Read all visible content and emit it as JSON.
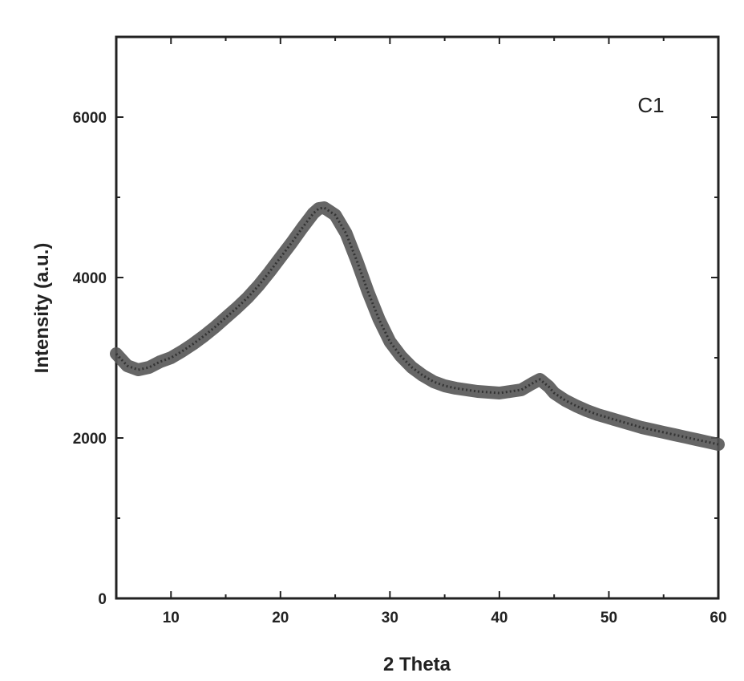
{
  "chart_data": {
    "type": "line",
    "title": "",
    "xlabel": "2 Theta",
    "ylabel": "Intensity (a.u.)",
    "xlim": [
      5,
      60
    ],
    "ylim": [
      0,
      7000
    ],
    "xticks": [
      10,
      20,
      30,
      40,
      50,
      60
    ],
    "yticks": [
      0,
      2000,
      4000,
      6000
    ],
    "grid": false,
    "annotation": "C1",
    "line_color": "#555555",
    "series": [
      {
        "x": [
          5,
          6,
          7,
          8,
          9,
          10,
          11,
          12,
          13,
          14,
          15,
          16,
          17,
          18,
          19,
          20,
          21,
          22,
          23,
          23.5,
          24,
          25,
          26,
          27,
          28,
          29,
          30,
          31,
          32,
          33,
          34,
          35,
          36,
          37,
          38,
          39,
          40,
          41,
          42,
          43,
          43.7,
          44.5,
          45,
          46,
          47,
          48,
          49,
          50,
          51,
          52,
          53,
          54,
          55,
          56,
          57,
          58,
          59,
          60
        ],
        "values": [
          3050,
          2900,
          2850,
          2880,
          2950,
          3000,
          3080,
          3170,
          3270,
          3380,
          3500,
          3620,
          3750,
          3900,
          4070,
          4250,
          4430,
          4620,
          4800,
          4860,
          4870,
          4780,
          4550,
          4200,
          3820,
          3480,
          3200,
          3020,
          2880,
          2780,
          2700,
          2650,
          2620,
          2600,
          2580,
          2570,
          2560,
          2580,
          2600,
          2680,
          2730,
          2640,
          2560,
          2470,
          2400,
          2340,
          2290,
          2250,
          2210,
          2170,
          2130,
          2100,
          2070,
          2040,
          2010,
          1980,
          1950,
          1920
        ]
      }
    ]
  }
}
